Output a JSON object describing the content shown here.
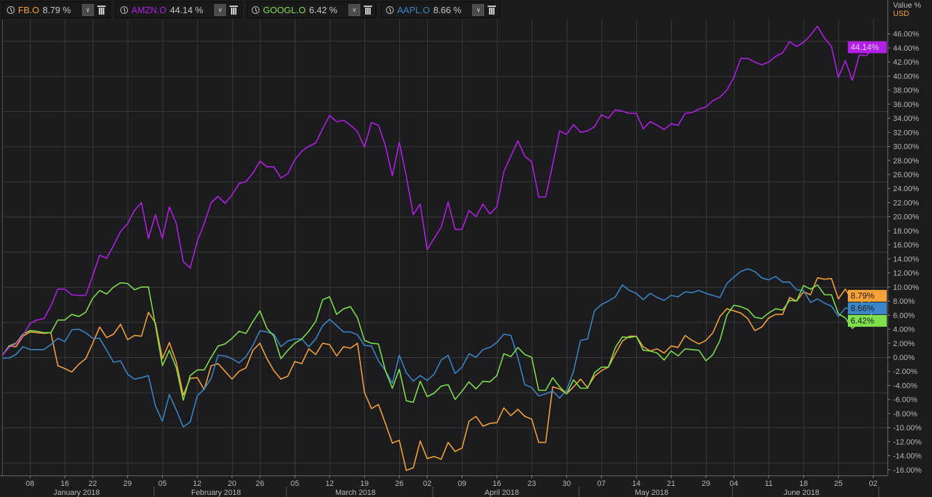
{
  "legend": [
    {
      "symbol": "FB.O",
      "value": "8.79 %",
      "color": "#f7a239"
    },
    {
      "symbol": "AMZN.O",
      "value": "44.14 %",
      "color": "#b31ee8"
    },
    {
      "symbol": "GOOGL.O",
      "value": "6.42 %",
      "color": "#7ee04a"
    },
    {
      "symbol": "AAPL.O",
      "value": "8.66 %",
      "color": "#3a86c8"
    }
  ],
  "axis": {
    "title": "Value %",
    "currency": "USD"
  },
  "chart_data": {
    "type": "line",
    "title": "",
    "xlabel": "",
    "ylabel": "Value %",
    "ylim": [
      -16.7,
      48
    ],
    "y_ticks": [
      -16,
      -14,
      -12,
      -10,
      -8,
      -6,
      -4,
      -2,
      0,
      2,
      4,
      6,
      8,
      10,
      12,
      14,
      16,
      18,
      20,
      22,
      24,
      26,
      28,
      30,
      32,
      34,
      36,
      38,
      40,
      42,
      44,
      46
    ],
    "y_grid": [
      -15,
      -10,
      -5,
      0,
      5,
      10,
      15,
      20,
      25,
      30,
      35,
      40,
      45
    ],
    "x_unit": "trading day index from 02 Jan 2018",
    "x_ticks": [
      {
        "label": "08",
        "i": 4
      },
      {
        "label": "16",
        "i": 9
      },
      {
        "label": "22",
        "i": 13
      },
      {
        "label": "29",
        "i": 18
      },
      {
        "label": "05",
        "i": 23
      },
      {
        "label": "12",
        "i": 28
      },
      {
        "label": "20",
        "i": 33
      },
      {
        "label": "26",
        "i": 37
      },
      {
        "label": "05",
        "i": 42
      },
      {
        "label": "12",
        "i": 47
      },
      {
        "label": "19",
        "i": 52
      },
      {
        "label": "26",
        "i": 57
      },
      {
        "label": "02",
        "i": 61
      },
      {
        "label": "09",
        "i": 66
      },
      {
        "label": "16",
        "i": 71
      },
      {
        "label": "23",
        "i": 76
      },
      {
        "label": "30",
        "i": 81
      },
      {
        "label": "07",
        "i": 86
      },
      {
        "label": "14",
        "i": 91
      },
      {
        "label": "21",
        "i": 96
      },
      {
        "label": "29",
        "i": 101
      },
      {
        "label": "04",
        "i": 105
      },
      {
        "label": "11",
        "i": 110
      },
      {
        "label": "18",
        "i": 115
      },
      {
        "label": "25",
        "i": 120
      },
      {
        "label": "02",
        "i": 125
      }
    ],
    "months": [
      {
        "label": "January 2018",
        "from": 0,
        "to": 21
      },
      {
        "label": "February 2018",
        "from": 21,
        "to": 40
      },
      {
        "label": "March 2018",
        "from": 40,
        "to": 61
      },
      {
        "label": "April 2018",
        "from": 61,
        "to": 82
      },
      {
        "label": "May 2018",
        "from": 82,
        "to": 104
      },
      {
        "label": "June 2018",
        "from": 104,
        "to": 125
      }
    ],
    "series": [
      {
        "name": "AMZN.O",
        "color": "#b31ee8",
        "last": "44.14%",
        "values": [
          0.2,
          1.4,
          1.9,
          3.1,
          4.8,
          5.3,
          5.5,
          7.3,
          9.7,
          9.7,
          8.9,
          8.8,
          8.8,
          11.6,
          14.5,
          14.1,
          15.9,
          17.9,
          19.0,
          20.9,
          22.0,
          16.9,
          20.3,
          16.9,
          21.4,
          19.0,
          13.6,
          12.7,
          16.5,
          19.0,
          22.0,
          22.9,
          21.9,
          23.1,
          24.7,
          25.0,
          26.2,
          27.9,
          27.1,
          27.1,
          25.5,
          26.1,
          28.1,
          29.3,
          30.0,
          30.5,
          32.5,
          34.4,
          33.5,
          33.7,
          33.0,
          32.1,
          29.9,
          33.4,
          33.0,
          30.1,
          25.8,
          30.6,
          25.7,
          20.3,
          21.8,
          15.3,
          16.9,
          18.5,
          22.1,
          18.2,
          18.2,
          20.9,
          20.0,
          21.8,
          20.4,
          21.4,
          26.4,
          28.6,
          30.8,
          28.6,
          27.8,
          22.8,
          22.8,
          27.4,
          32.2,
          31.7,
          33.1,
          32.0,
          32.2,
          32.8,
          34.5,
          34.0,
          35.2,
          35.0,
          34.7,
          34.7,
          32.5,
          33.5,
          33.0,
          32.4,
          33.2,
          33.0,
          34.7,
          34.8,
          35.3,
          35.6,
          36.5,
          37.0,
          38.0,
          39.8,
          42.5,
          42.5,
          42.0,
          41.6,
          42.0,
          42.8,
          43.3,
          44.9,
          44.2,
          44.8,
          45.8,
          47.1,
          45.4,
          44.2,
          39.8,
          42.2,
          39.4,
          43.0,
          42.9,
          44.14
        ]
      },
      {
        "name": "FB.O",
        "color": "#f7a239",
        "last": "8.79%",
        "values": [
          0.2,
          1.6,
          1.5,
          3.0,
          3.6,
          3.5,
          3.4,
          3.5,
          -1.2,
          -1.6,
          -2.1,
          -1.0,
          -0.2,
          2.0,
          4.3,
          2.8,
          3.3,
          4.7,
          2.5,
          3.1,
          3.0,
          6.4,
          4.9,
          -0.2,
          2.1,
          -0.7,
          -5.4,
          -3.0,
          -2.9,
          -4.6,
          -1.2,
          -0.9,
          -2.0,
          -3.1,
          -2.0,
          -1.5,
          1.0,
          2.0,
          -0.2,
          -1.9,
          -3.1,
          -2.7,
          -0.6,
          -0.9,
          1.2,
          0.4,
          2.0,
          1.8,
          0.2,
          1.5,
          1.3,
          2.0,
          -5.0,
          -7.3,
          -6.7,
          -9.4,
          -12.2,
          -11.8,
          -16.1,
          -15.7,
          -11.9,
          -14.4,
          -14.1,
          -14.5,
          -12.1,
          -13.4,
          -12.9,
          -9.1,
          -8.4,
          -9.8,
          -9.4,
          -9.3,
          -7.2,
          -8.3,
          -7.4,
          -8.4,
          -8.8,
          -12.1,
          -12.1,
          -4.2,
          -4.5,
          -5.2,
          -4.2,
          -3.1,
          -4.3,
          -2.7,
          -1.9,
          -1.4,
          0.5,
          2.3,
          3.0,
          3.0,
          1.5,
          0.9,
          1.2,
          0.6,
          1.6,
          1.4,
          3.1,
          2.4,
          1.9,
          2.4,
          3.5,
          5.8,
          6.9,
          6.6,
          6.3,
          5.5,
          3.8,
          4.3,
          5.6,
          6.1,
          6.1,
          8.5,
          8.0,
          9.3,
          8.9,
          11.3,
          11.1,
          11.2,
          8.3,
          9.7,
          8.0,
          8.2,
          7.2,
          8.79
        ]
      },
      {
        "name": "GOOGL.O",
        "color": "#7ee04a",
        "last": "6.42%",
        "values": [
          0.2,
          1.6,
          2.0,
          3.3,
          3.8,
          3.7,
          3.5,
          3.5,
          5.3,
          5.3,
          6.1,
          5.8,
          6.4,
          8.4,
          9.5,
          9.0,
          10.0,
          10.6,
          10.5,
          9.6,
          10.0,
          10.0,
          4.6,
          -1.2,
          1.0,
          -1.5,
          -6.1,
          -2.6,
          -1.8,
          -1.8,
          0.0,
          1.6,
          1.9,
          2.7,
          3.7,
          3.4,
          5.1,
          6.6,
          4.1,
          3.0,
          -0.2,
          1.0,
          2.0,
          2.6,
          3.7,
          5.1,
          8.2,
          8.6,
          6.1,
          6.9,
          7.2,
          5.6,
          2.4,
          2.0,
          1.9,
          -1.9,
          -4.4,
          -1.7,
          -6.2,
          -6.4,
          -3.4,
          -5.6,
          -5.1,
          -4.1,
          -3.9,
          -6.0,
          -4.8,
          -3.5,
          -4.5,
          -3.4,
          -3.5,
          -2.6,
          0.5,
          0.1,
          1.4,
          0.4,
          0.0,
          -4.7,
          -4.7,
          -2.9,
          -4.2,
          -5.2,
          -3.2,
          -4.4,
          -4.4,
          -2.2,
          -1.4,
          -1.4,
          1.4,
          2.9,
          2.8,
          3.0,
          1.0,
          0.9,
          0.6,
          -0.4,
          0.9,
          0.2,
          1.2,
          1.1,
          1.0,
          -0.5,
          0.4,
          2.4,
          6.0,
          7.4,
          7.2,
          6.8,
          5.7,
          5.5,
          6.3,
          6.9,
          6.7,
          8.1,
          8.0,
          10.2,
          9.7,
          10.3,
          8.9,
          8.9,
          6.2,
          5.6,
          4.1,
          5.0,
          5.2,
          6.42
        ]
      },
      {
        "name": "AAPL.O",
        "color": "#3a86c8",
        "last": "8.66%",
        "values": [
          -0.1,
          -0.1,
          0.4,
          1.5,
          1.1,
          1.1,
          1.1,
          1.8,
          2.7,
          2.2,
          3.9,
          4.0,
          3.5,
          2.7,
          2.7,
          1.0,
          -0.7,
          -0.5,
          -2.4,
          -3.1,
          -2.9,
          -2.6,
          -6.9,
          -9.1,
          -5.3,
          -7.5,
          -9.9,
          -9.2,
          -5.5,
          -4.5,
          -3.0,
          0.3,
          0.2,
          -0.2,
          -0.8,
          0.1,
          1.7,
          3.8,
          3.6,
          3.3,
          1.5,
          2.3,
          2.6,
          2.6,
          1.5,
          2.6,
          4.5,
          5.4,
          4.5,
          3.6,
          3.6,
          3.2,
          1.7,
          1.6,
          -0.5,
          -1.9,
          -3.7,
          0.3,
          -2.2,
          -3.4,
          -2.6,
          -3.3,
          -2.4,
          -0.4,
          0.3,
          -2.3,
          -1.4,
          0.5,
          0.0,
          1.1,
          1.4,
          2.1,
          3.3,
          3.1,
          0.0,
          -3.9,
          -4.3,
          -5.5,
          -5.2,
          -4.8,
          -5.8,
          -4.7,
          -2.0,
          2.4,
          2.6,
          6.6,
          7.5,
          8.0,
          8.6,
          10.3,
          9.5,
          9.1,
          8.2,
          9.1,
          8.5,
          8.1,
          8.8,
          8.6,
          9.3,
          9.2,
          9.5,
          9.1,
          8.8,
          8.5,
          10.5,
          11.4,
          12.2,
          12.6,
          12.2,
          11.3,
          11.0,
          11.5,
          10.7,
          10.7,
          9.6,
          9.5,
          7.8,
          8.3,
          7.7,
          7.3,
          5.8,
          7.0,
          6.9,
          7.7,
          7.4,
          8.66
        ]
      }
    ]
  }
}
